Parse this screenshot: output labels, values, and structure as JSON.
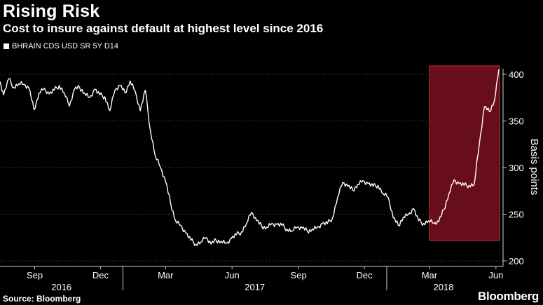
{
  "header": {
    "title": "Rising Risk",
    "subtitle": "Cost to insure against default at highest level since 2016"
  },
  "legend": {
    "label": "BHRAIN CDS USD SR 5Y D14"
  },
  "footer": {
    "source": "Source: Bloomberg",
    "brand": "Bloomberg"
  },
  "colors": {
    "background": "#000000",
    "line": "#ffffff",
    "highlight_fill": "#7a0f1e",
    "highlight_border": "#c4304a",
    "grid": "#5a5a5a"
  },
  "chart_data": {
    "type": "line",
    "ylabel": "Basis points",
    "xlabel": "",
    "ylim": [
      200,
      410
    ],
    "yticks": [
      200,
      250,
      300,
      350,
      400
    ],
    "y_axis_side": "right",
    "grid": "horizontal dotted",
    "x_month_ticks": [
      "Sep",
      "Dec",
      "Mar",
      "Jun",
      "Sep",
      "Dec",
      "Mar",
      "Jun"
    ],
    "x_month_tick_dates": [
      "2016-09",
      "2016-12",
      "2017-03",
      "2017-06",
      "2017-09",
      "2017-12",
      "2018-03",
      "2018-06"
    ],
    "x_year_labels": [
      "2016",
      "2017",
      "2018"
    ],
    "highlight": {
      "start": "2018-03-01",
      "end": "2018-06-06",
      "ymin": 222,
      "ymax": 410
    },
    "series": [
      {
        "name": "BHRAIN CDS USD SR 5Y D14",
        "x": [
          "2016-07-15",
          "2016-07-20",
          "2016-07-27",
          "2016-08-03",
          "2016-08-10",
          "2016-08-17",
          "2016-08-24",
          "2016-08-31",
          "2016-09-07",
          "2016-09-14",
          "2016-09-21",
          "2016-09-28",
          "2016-10-05",
          "2016-10-12",
          "2016-10-19",
          "2016-10-26",
          "2016-11-02",
          "2016-11-09",
          "2016-11-16",
          "2016-11-23",
          "2016-11-30",
          "2016-12-07",
          "2016-12-14",
          "2016-12-21",
          "2016-12-28",
          "2017-01-04",
          "2017-01-11",
          "2017-01-18",
          "2017-01-25",
          "2017-02-01",
          "2017-02-08",
          "2017-02-15",
          "2017-02-22",
          "2017-03-01",
          "2017-03-08",
          "2017-03-15",
          "2017-03-22",
          "2017-03-29",
          "2017-04-05",
          "2017-04-12",
          "2017-04-19",
          "2017-04-26",
          "2017-05-03",
          "2017-05-10",
          "2017-05-17",
          "2017-05-24",
          "2017-05-31",
          "2017-06-07",
          "2017-06-14",
          "2017-06-21",
          "2017-06-28",
          "2017-07-05",
          "2017-07-12",
          "2017-07-19",
          "2017-07-26",
          "2017-08-02",
          "2017-08-09",
          "2017-08-16",
          "2017-08-23",
          "2017-08-30",
          "2017-09-06",
          "2017-09-13",
          "2017-09-20",
          "2017-09-27",
          "2017-10-04",
          "2017-10-11",
          "2017-10-18",
          "2017-10-25",
          "2017-11-01",
          "2017-11-08",
          "2017-11-15",
          "2017-11-22",
          "2017-11-29",
          "2017-12-06",
          "2017-12-13",
          "2017-12-20",
          "2017-12-27",
          "2018-01-03",
          "2018-01-10",
          "2018-01-17",
          "2018-01-24",
          "2018-01-31",
          "2018-02-07",
          "2018-02-14",
          "2018-02-21",
          "2018-02-28",
          "2018-03-07",
          "2018-03-14",
          "2018-03-21",
          "2018-03-28",
          "2018-04-04",
          "2018-04-11",
          "2018-04-18",
          "2018-04-25",
          "2018-05-02",
          "2018-05-09",
          "2018-05-16",
          "2018-05-23",
          "2018-05-30",
          "2018-06-05"
        ],
        "values": [
          392,
          378,
          395,
          386,
          390,
          389,
          385,
          362,
          380,
          385,
          379,
          383,
          388,
          380,
          366,
          384,
          386,
          380,
          375,
          384,
          378,
          376,
          361,
          383,
          388,
          380,
          393,
          382,
          361,
          383,
          340,
          312,
          300,
          285,
          262,
          243,
          238,
          230,
          222,
          218,
          220,
          225,
          218,
          222,
          221,
          219,
          224,
          228,
          231,
          240,
          252,
          243,
          237,
          236,
          240,
          239,
          238,
          234,
          232,
          236,
          235,
          232,
          234,
          236,
          240,
          240,
          246,
          268,
          284,
          280,
          276,
          282,
          286,
          283,
          280,
          281,
          272,
          268,
          246,
          238,
          247,
          250,
          256,
          243,
          240,
          243,
          240,
          242,
          255,
          272,
          287,
          283,
          281,
          281,
          282,
          325,
          365,
          360,
          372,
          405
        ]
      }
    ]
  }
}
